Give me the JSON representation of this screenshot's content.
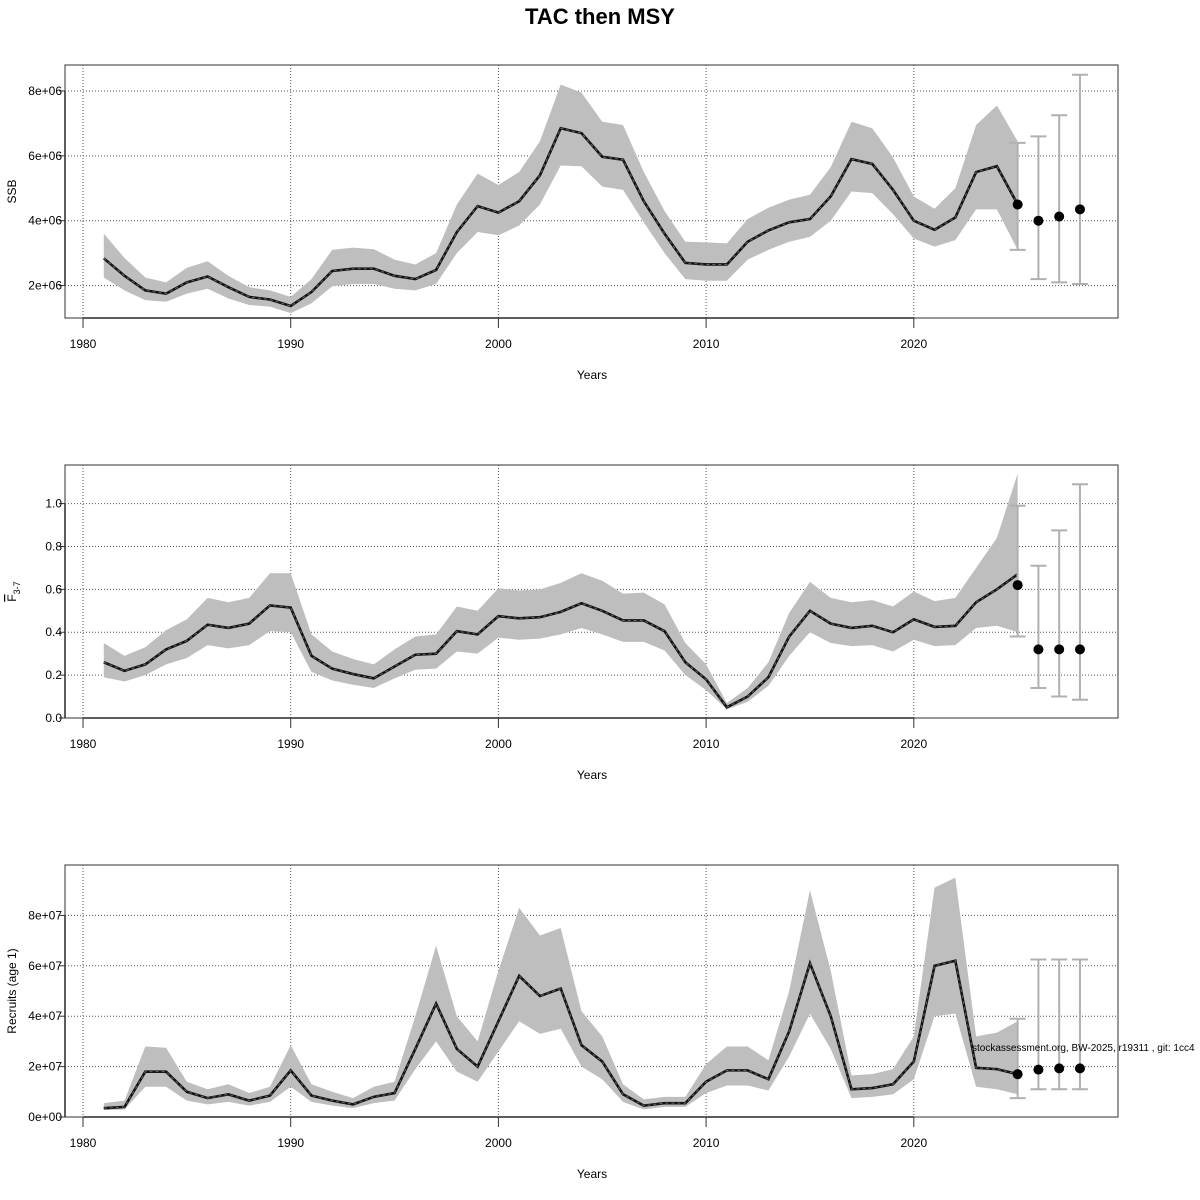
{
  "title": "TAC then MSY",
  "footnote": "stockassessment.org, BW-2025, r19311 , git: 1cc4",
  "colors": {
    "band": "#bebebe",
    "line": "#000000",
    "errorbar": "#b0b0b0",
    "grid": "#555555"
  },
  "chart_data": [
    {
      "type": "line",
      "ylabel": "SSB",
      "xlabel": "Years",
      "xlim": [
        1980,
        2028
      ],
      "ylim": [
        1000000,
        8800000
      ],
      "x_ticks": [
        1980,
        1990,
        2000,
        2010,
        2020
      ],
      "y_ticks": [
        2000000,
        4000000,
        6000000,
        8000000
      ],
      "y_tick_labels": [
        "2e+06",
        "4e+06",
        "6e+06",
        "8e+06"
      ],
      "grid": true,
      "years": [
        1981,
        1982,
        1983,
        1984,
        1985,
        1986,
        1987,
        1988,
        1989,
        1990,
        1991,
        1992,
        1993,
        1994,
        1995,
        1996,
        1997,
        1998,
        1999,
        2000,
        2001,
        2002,
        2003,
        2004,
        2005,
        2006,
        2007,
        2008,
        2009,
        2010,
        2011,
        2012,
        2013,
        2014,
        2015,
        2016,
        2017,
        2018,
        2019,
        2020,
        2021,
        2022,
        2023,
        2024,
        2025
      ],
      "estimate": [
        2840000,
        2300000,
        1850000,
        1750000,
        2100000,
        2280000,
        1950000,
        1650000,
        1570000,
        1370000,
        1800000,
        2450000,
        2520000,
        2520000,
        2300000,
        2200000,
        2480000,
        3650000,
        4450000,
        4250000,
        4600000,
        5400000,
        6850000,
        6700000,
        5970000,
        5880000,
        4600000,
        3600000,
        2700000,
        2650000,
        2650000,
        3350000,
        3700000,
        3950000,
        4050000,
        4750000,
        5900000,
        5750000,
        4950000,
        4000000,
        3720000,
        4100000,
        5500000,
        5680000,
        4500000
      ],
      "lower": [
        2250000,
        1850000,
        1550000,
        1500000,
        1750000,
        1900000,
        1600000,
        1400000,
        1350000,
        1150000,
        1450000,
        1980000,
        2050000,
        2050000,
        1900000,
        1850000,
        2050000,
        3000000,
        3650000,
        3550000,
        3850000,
        4500000,
        5700000,
        5680000,
        5050000,
        4950000,
        3950000,
        3000000,
        2200000,
        2150000,
        2150000,
        2800000,
        3100000,
        3350000,
        3500000,
        4000000,
        4900000,
        4850000,
        4200000,
        3450000,
        3200000,
        3400000,
        4350000,
        4350000,
        3100000
      ],
      "upper": [
        3600000,
        2850000,
        2250000,
        2100000,
        2550000,
        2750000,
        2300000,
        1950000,
        1850000,
        1650000,
        2200000,
        3100000,
        3170000,
        3120000,
        2800000,
        2650000,
        3000000,
        4500000,
        5450000,
        5100000,
        5500000,
        6450000,
        8200000,
        7950000,
        7050000,
        6950000,
        5500000,
        4300000,
        3350000,
        3330000,
        3300000,
        4050000,
        4400000,
        4650000,
        4800000,
        5650000,
        7050000,
        6850000,
        5950000,
        4750000,
        4370000,
        5000000,
        6950000,
        7550000,
        6450000
      ],
      "projection": {
        "years": [
          2025,
          2026,
          2027,
          2028
        ],
        "values": [
          4500000,
          4000000,
          4130000,
          4350000
        ],
        "lower": [
          3100000,
          2200000,
          2100000,
          2050000
        ],
        "upper": [
          6400000,
          6600000,
          7250000,
          8500000
        ]
      }
    },
    {
      "type": "line",
      "ylabel": "F",
      "ylabel_subscript": "3-7",
      "xlabel": "Years",
      "xlim": [
        1980,
        2028
      ],
      "ylim": [
        0,
        1.18
      ],
      "x_ticks": [
        1980,
        1990,
        2000,
        2010,
        2020
      ],
      "y_ticks": [
        0,
        0.2,
        0.4,
        0.6,
        0.8,
        1.0
      ],
      "y_tick_labels": [
        "0.0",
        "0.2",
        "0.4",
        "0.6",
        "0.8",
        "1.0"
      ],
      "grid": true,
      "years": [
        1981,
        1982,
        1983,
        1984,
        1985,
        1986,
        1987,
        1988,
        1989,
        1990,
        1991,
        1992,
        1993,
        1994,
        1995,
        1996,
        1997,
        1998,
        1999,
        2000,
        2001,
        2002,
        2003,
        2004,
        2005,
        2006,
        2007,
        2008,
        2009,
        2010,
        2011,
        2012,
        2013,
        2014,
        2015,
        2016,
        2017,
        2018,
        2019,
        2020,
        2021,
        2022,
        2023,
        2024,
        2025
      ],
      "estimate": [
        0.26,
        0.22,
        0.25,
        0.32,
        0.36,
        0.435,
        0.42,
        0.44,
        0.525,
        0.515,
        0.29,
        0.23,
        0.205,
        0.185,
        0.24,
        0.295,
        0.3,
        0.405,
        0.39,
        0.475,
        0.465,
        0.47,
        0.495,
        0.535,
        0.5,
        0.455,
        0.455,
        0.405,
        0.26,
        0.18,
        0.05,
        0.1,
        0.19,
        0.38,
        0.5,
        0.44,
        0.42,
        0.43,
        0.4,
        0.46,
        0.425,
        0.43,
        0.54,
        0.6,
        0.67
      ],
      "lower": [
        0.19,
        0.17,
        0.2,
        0.25,
        0.28,
        0.34,
        0.325,
        0.34,
        0.405,
        0.4,
        0.215,
        0.175,
        0.155,
        0.14,
        0.185,
        0.225,
        0.23,
        0.31,
        0.3,
        0.375,
        0.365,
        0.37,
        0.39,
        0.42,
        0.39,
        0.355,
        0.355,
        0.315,
        0.2,
        0.13,
        0.04,
        0.075,
        0.15,
        0.29,
        0.4,
        0.35,
        0.335,
        0.34,
        0.31,
        0.365,
        0.335,
        0.34,
        0.42,
        0.43,
        0.4
      ],
      "upper": [
        0.35,
        0.29,
        0.33,
        0.41,
        0.46,
        0.56,
        0.54,
        0.56,
        0.675,
        0.675,
        0.39,
        0.31,
        0.275,
        0.25,
        0.32,
        0.38,
        0.39,
        0.52,
        0.5,
        0.605,
        0.595,
        0.6,
        0.63,
        0.675,
        0.64,
        0.58,
        0.585,
        0.53,
        0.35,
        0.25,
        0.07,
        0.14,
        0.26,
        0.49,
        0.635,
        0.56,
        0.54,
        0.55,
        0.52,
        0.59,
        0.545,
        0.56,
        0.7,
        0.84,
        1.14
      ],
      "projection": {
        "years": [
          2025,
          2026,
          2027,
          2028
        ],
        "values": [
          0.62,
          0.32,
          0.32,
          0.32
        ],
        "lower": [
          0.38,
          0.14,
          0.1,
          0.085
        ],
        "upper": [
          0.99,
          0.71,
          0.875,
          1.09
        ]
      }
    },
    {
      "type": "line",
      "ylabel": "Recruits (age 1)",
      "xlabel": "Years",
      "xlim": [
        1980,
        2028
      ],
      "ylim": [
        0,
        100000000
      ],
      "x_ticks": [
        1980,
        1990,
        2000,
        2010,
        2020
      ],
      "y_ticks": [
        0,
        20000000,
        40000000,
        60000000,
        80000000
      ],
      "y_tick_labels": [
        "0e+00",
        "2e+07",
        "4e+07",
        "6e+07",
        "8e+07"
      ],
      "grid": true,
      "years": [
        1981,
        1982,
        1983,
        1984,
        1985,
        1986,
        1987,
        1988,
        1989,
        1990,
        1991,
        1992,
        1993,
        1994,
        1995,
        1996,
        1997,
        1998,
        1999,
        2000,
        2001,
        2002,
        2003,
        2004,
        2005,
        2006,
        2007,
        2008,
        2009,
        2010,
        2011,
        2012,
        2013,
        2014,
        2015,
        2016,
        2017,
        2018,
        2019,
        2020,
        2021,
        2022,
        2023,
        2024,
        2025
      ],
      "estimate": [
        3500000,
        4000000,
        18000000,
        18000000,
        10000000,
        7500000,
        9000000,
        6500000,
        8500000,
        18500000,
        8500000,
        6500000,
        5000000,
        8000000,
        9500000,
        27000000,
        45000000,
        27000000,
        20000000,
        38000000,
        56000000,
        48000000,
        51000000,
        28500000,
        22000000,
        9000000,
        4500000,
        5500000,
        5500000,
        14000000,
        18500000,
        18500000,
        15000000,
        34000000,
        61000000,
        40000000,
        11000000,
        11500000,
        13000000,
        22000000,
        60000000,
        62000000,
        19500000,
        19000000,
        17000000
      ],
      "lower": [
        2800000,
        3000000,
        12000000,
        12000000,
        6500000,
        5000000,
        6000000,
        4500000,
        6000000,
        12000000,
        6000000,
        4500000,
        3500000,
        5500000,
        6500000,
        19000000,
        30000000,
        18000000,
        14000000,
        26000000,
        38000000,
        33000000,
        35000000,
        20000000,
        15000000,
        6000000,
        3000000,
        4000000,
        4000000,
        9500000,
        12500000,
        12500000,
        10500000,
        24000000,
        41000000,
        27000000,
        7500000,
        8000000,
        9000000,
        15000000,
        40000000,
        41000000,
        12000000,
        11000000,
        9000000
      ],
      "upper": [
        5500000,
        6500000,
        28000000,
        27500000,
        14000000,
        11000000,
        13000000,
        9500000,
        12000000,
        28500000,
        13000000,
        10000000,
        7500000,
        12000000,
        14000000,
        40000000,
        68000000,
        40000000,
        30000000,
        58000000,
        83000000,
        72000000,
        75000000,
        42000000,
        32000000,
        13000000,
        7000000,
        8000000,
        8000000,
        21000000,
        28000000,
        28000000,
        22500000,
        50000000,
        90000000,
        58000000,
        16500000,
        17000000,
        19000000,
        32000000,
        91000000,
        95000000,
        32000000,
        33500000,
        38000000
      ],
      "projection": {
        "years": [
          2025,
          2026,
          2027,
          2028
        ],
        "values": [
          17000000,
          18800000,
          19300000,
          19300000
        ],
        "lower": [
          7500000,
          11000000,
          11000000,
          11000000
        ],
        "upper": [
          39000000,
          62500000,
          62500000,
          62500000
        ]
      }
    }
  ]
}
